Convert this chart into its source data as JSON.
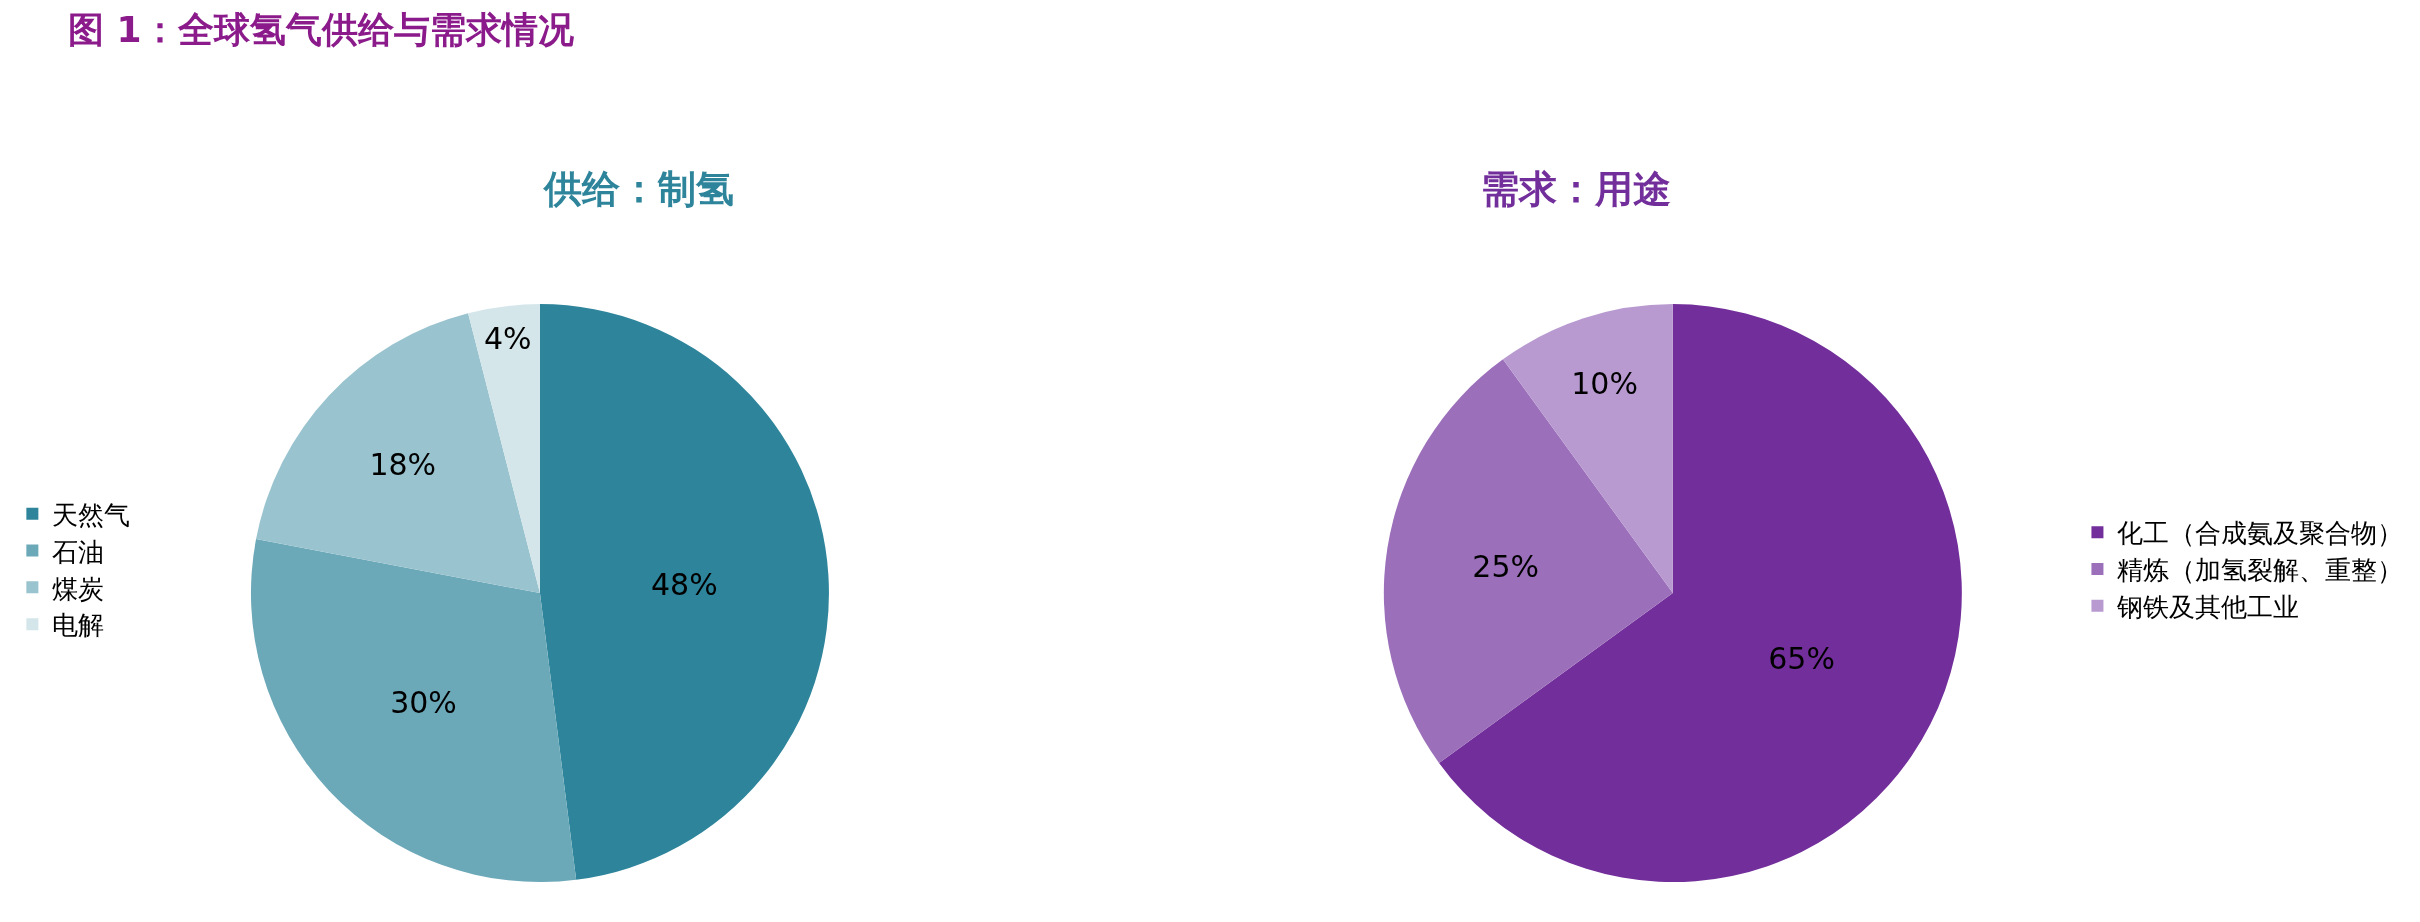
{
  "chart_data": [
    {
      "type": "pie",
      "title": "图 1：全球氢气供给与需求情况",
      "subtitle": "供给：制氢",
      "categories": [
        "天然气",
        "石油",
        "煤炭",
        "电解"
      ],
      "values": [
        48,
        30,
        18,
        4
      ],
      "value_labels": [
        "48%",
        "30%",
        "18%",
        "4%"
      ],
      "colors": [
        "#2e859b",
        "#6ba8b8",
        "#99c3ce",
        "#d4e6ea"
      ],
      "legend": "left"
    },
    {
      "type": "pie",
      "subtitle": "需求：用途",
      "categories": [
        "化工（合成氨及聚合物）",
        "精炼（加氢裂解、重整）",
        "钢铁及其他工业"
      ],
      "values": [
        65,
        25,
        10
      ],
      "value_labels": [
        "65%",
        "25%",
        "10%"
      ],
      "colors": [
        "#722e9a",
        "#9b6fba",
        "#b89ad0"
      ],
      "legend": "right"
    }
  ]
}
